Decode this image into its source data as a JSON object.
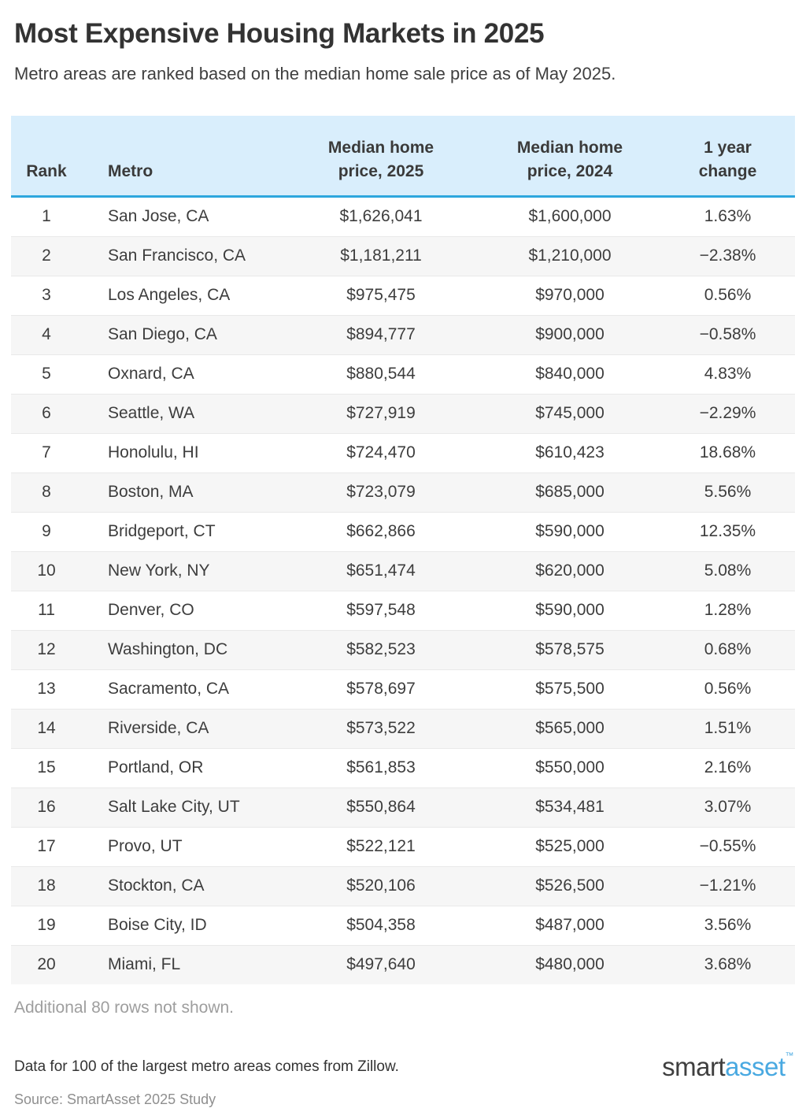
{
  "page": {
    "title": "Most Expensive Housing Markets in 2025",
    "subtitle": "Metro areas are ranked based on the median home sale price as of May 2025."
  },
  "table_header": {
    "rank_label": "Rank",
    "metro_label": "Metro",
    "price_2025_line1": "Median home",
    "price_2025_line2": "price, 2025",
    "price_2024_line1": "Median home",
    "price_2024_line2": "price, 2024",
    "change_line1": "1 year",
    "change_line2": "change"
  },
  "chart_data": {
    "type": "table",
    "title": "Most Expensive Housing Markets in 2025",
    "subtitle": "Metro areas are ranked based on the median home sale price as of May 2025.",
    "columns": [
      "Rank",
      "Metro",
      "Median home price, 2025",
      "Median home price, 2024",
      "1 year change"
    ],
    "rows": [
      {
        "rank": "1",
        "metro": "San Jose, CA",
        "price_2025": "$1,626,041",
        "price_2024": "$1,600,000",
        "change": "1.63%"
      },
      {
        "rank": "2",
        "metro": "San Francisco, CA",
        "price_2025": "$1,181,211",
        "price_2024": "$1,210,000",
        "change": "−2.38%"
      },
      {
        "rank": "3",
        "metro": "Los Angeles, CA",
        "price_2025": "$975,475",
        "price_2024": "$970,000",
        "change": "0.56%"
      },
      {
        "rank": "4",
        "metro": "San Diego, CA",
        "price_2025": "$894,777",
        "price_2024": "$900,000",
        "change": "−0.58%"
      },
      {
        "rank": "5",
        "metro": "Oxnard, CA",
        "price_2025": "$880,544",
        "price_2024": "$840,000",
        "change": "4.83%"
      },
      {
        "rank": "6",
        "metro": "Seattle, WA",
        "price_2025": "$727,919",
        "price_2024": "$745,000",
        "change": "−2.29%"
      },
      {
        "rank": "7",
        "metro": "Honolulu, HI",
        "price_2025": "$724,470",
        "price_2024": "$610,423",
        "change": "18.68%"
      },
      {
        "rank": "8",
        "metro": "Boston, MA",
        "price_2025": "$723,079",
        "price_2024": "$685,000",
        "change": "5.56%"
      },
      {
        "rank": "9",
        "metro": "Bridgeport, CT",
        "price_2025": "$662,866",
        "price_2024": "$590,000",
        "change": "12.35%"
      },
      {
        "rank": "10",
        "metro": "New York, NY",
        "price_2025": "$651,474",
        "price_2024": "$620,000",
        "change": "5.08%"
      },
      {
        "rank": "11",
        "metro": "Denver, CO",
        "price_2025": "$597,548",
        "price_2024": "$590,000",
        "change": "1.28%"
      },
      {
        "rank": "12",
        "metro": "Washington, DC",
        "price_2025": "$582,523",
        "price_2024": "$578,575",
        "change": "0.68%"
      },
      {
        "rank": "13",
        "metro": "Sacramento, CA",
        "price_2025": "$578,697",
        "price_2024": "$575,500",
        "change": "0.56%"
      },
      {
        "rank": "14",
        "metro": "Riverside, CA",
        "price_2025": "$573,522",
        "price_2024": "$565,000",
        "change": "1.51%"
      },
      {
        "rank": "15",
        "metro": "Portland, OR",
        "price_2025": "$561,853",
        "price_2024": "$550,000",
        "change": "2.16%"
      },
      {
        "rank": "16",
        "metro": "Salt Lake City, UT",
        "price_2025": "$550,864",
        "price_2024": "$534,481",
        "change": "3.07%"
      },
      {
        "rank": "17",
        "metro": "Provo, UT",
        "price_2025": "$522,121",
        "price_2024": "$525,000",
        "change": "−0.55%"
      },
      {
        "rank": "18",
        "metro": "Stockton, CA",
        "price_2025": "$520,106",
        "price_2024": "$526,500",
        "change": "−1.21%"
      },
      {
        "rank": "19",
        "metro": "Boise City, ID",
        "price_2025": "$504,358",
        "price_2024": "$487,000",
        "change": "3.56%"
      },
      {
        "rank": "20",
        "metro": "Miami, FL",
        "price_2025": "$497,640",
        "price_2024": "$480,000",
        "change": "3.68%"
      }
    ]
  },
  "footer": {
    "additional_note": "Additional 80 rows not shown.",
    "data_note": "Data for 100 of the largest metro areas comes from Zillow.",
    "source_note": "Source: SmartAsset 2025 Study",
    "logo_part1": "smart",
    "logo_part2": "asset",
    "logo_tm": "™"
  },
  "colors": {
    "accent_blue": "#2ea7de",
    "header_bg": "#d9eefc",
    "alt_row_bg": "#f6f6f6",
    "logo_blue": "#49a9e1",
    "text_dark": "#3d3d3d",
    "text_muted": "#9e9e9e"
  }
}
